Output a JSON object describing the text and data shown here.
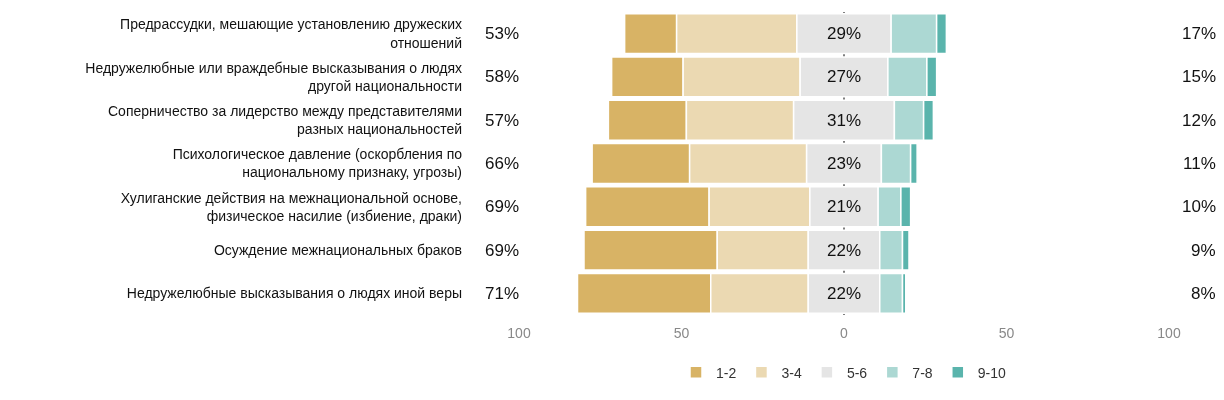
{
  "chart_data": {
    "type": "bar",
    "orientation": "horizontal",
    "categories": [
      "Предрассудки, мешающие установлению дружеских\nотношений",
      "Недружелюбные или враждебные высказывания о людях\nдругой национальности",
      "Соперничество за лидерство между представителями\nразных национальностей",
      "Психологическое давление (оскорбления по\nнациональному признаку, угрозы)",
      "Хулиганские действия на межнациональной основе,\nфизическое насилие (избиение, драки)",
      "Осуждение межнациональных браков",
      "Недружелюбные высказывания о людях иной веры"
    ],
    "series": [
      {
        "name": "1-2",
        "color": "#d8b365",
        "values": [
          16,
          22,
          24,
          30,
          38,
          41,
          41
        ],
        "base": [
          -67.5,
          -71.5,
          -72.5,
          -77.5,
          -79.5,
          -80,
          -82
        ]
      },
      {
        "name": "3-4",
        "color": "#ebd9b2",
        "values": [
          37,
          36,
          33,
          36,
          31,
          28,
          30
        ],
        "base": [
          -51.5,
          -49.5,
          -48.5,
          -47.5,
          -41.5,
          -39,
          -41
        ]
      },
      {
        "name": "5-6",
        "color": "#e5e5e5",
        "values": [
          29,
          27,
          31,
          23,
          21,
          22,
          22
        ],
        "base": [
          -14.5,
          -13.5,
          -15.5,
          -11.5,
          -10.5,
          -11,
          -11
        ],
        "value_labels": [
          "29%",
          "27%",
          "31%",
          "23%",
          "21%",
          "22%",
          "22%"
        ]
      },
      {
        "name": "7-8",
        "color": "#acd8d3",
        "values": [
          14,
          12,
          9,
          9,
          7,
          7,
          7
        ],
        "base": [
          14.5,
          13.5,
          15.5,
          11.5,
          10.5,
          11,
          11
        ]
      },
      {
        "name": "9-10",
        "color": "#5ab4ac",
        "values": [
          3,
          3,
          3,
          2,
          3,
          2,
          1
        ],
        "base": [
          28.5,
          25.5,
          24.5,
          20.5,
          17.5,
          18,
          18
        ]
      }
    ],
    "annotations": [
      "53%",
      "58%",
      "57%",
      "66%",
      "69%",
      "69%",
      "71%",
      "17%",
      "15%",
      "12%",
      "11%",
      "10%",
      "9%",
      "8%"
    ],
    "xlim": [
      -100,
      100
    ],
    "xticks": [
      {
        "value": -100,
        "label": "100"
      },
      {
        "value": -50,
        "label": "50"
      },
      0,
      50,
      100
    ],
    "ref_lines": [
      {
        "axis": "x",
        "value": 0,
        "color": "#555555"
      }
    ],
    "grid": false,
    "legend": "bottom"
  }
}
